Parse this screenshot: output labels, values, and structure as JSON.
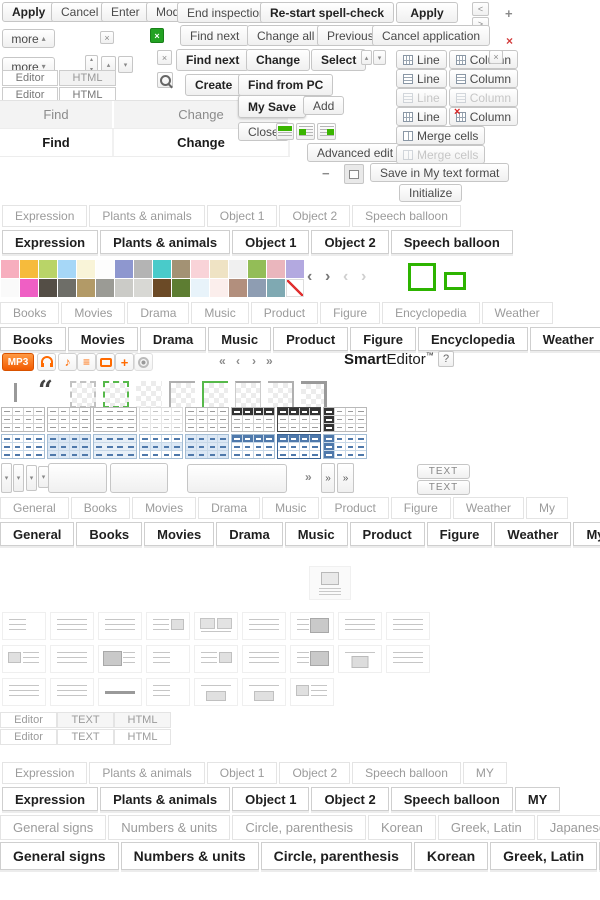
{
  "colors": {
    "accent_green": "#2db400",
    "accent_orange": "#ff6a00",
    "table_blue": "#4f79ab",
    "tab_inactive_text": "#9b9b9b",
    "tab_active_text": "#1f1f1f"
  },
  "top": {
    "apply": "Apply",
    "cancel": "Cancel",
    "enter": "Enter",
    "modify": "Modify",
    "end_inspection": "End inspection",
    "restart_spell_check": "Re-start spell-check",
    "apply_bold": "Apply",
    "find_next": "Find next",
    "change_all": "Change all",
    "previous": "Previous",
    "cancel_application": "Cancel application",
    "find_next2": "Find next",
    "change": "Change",
    "select": "Select",
    "more": "more",
    "editor": "Editor",
    "html": "HTML",
    "find": "Find",
    "change_header": "Change",
    "create": "Create",
    "find_from_pc": "Find from PC",
    "my_save": "My Save",
    "add": "Add",
    "close": "Close",
    "advanced_edit": "Advanced edit",
    "save_in_my_text_format": "Save in My text format",
    "initialize": "Initialize"
  },
  "table_controls": {
    "line": "Line",
    "column": "Column",
    "merge_cells": "Merge cells"
  },
  "tabs": {
    "stickers": [
      "Expression",
      "Plants & animals",
      "Object 1",
      "Object 2",
      "Speech balloon"
    ],
    "media": [
      "Books",
      "Movies",
      "Drama",
      "Music",
      "Product",
      "Figure",
      "Encyclopedia",
      "Weather"
    ],
    "photo": [
      "General",
      "Books",
      "Movies",
      "Drama",
      "Music",
      "Product",
      "Figure",
      "Weather",
      "My"
    ],
    "mode": [
      "Editor",
      "TEXT",
      "HTML"
    ],
    "stickers_my": [
      "Expression",
      "Plants & animals",
      "Object 1",
      "Object 2",
      "Speech balloon",
      "MY"
    ],
    "symbols": [
      "General signs",
      "Numbers & units",
      "Circle, parenthesis",
      "Korean",
      "Greek, Latin",
      "Japanese"
    ]
  },
  "brand": {
    "bold": "Smart",
    "regular": "Editor",
    "tm": "™",
    "help": "?"
  },
  "media_bar": {
    "mp3": "MP3",
    "icons": [
      "mp3-badge",
      "headphones-icon",
      "music-note-icon",
      "playlist-icon",
      "tv-icon",
      "plus-icon",
      "cd-icon"
    ]
  },
  "text_button_label": "TEXT",
  "glyphs": {
    "nav_left": "<",
    "nav_right": ">",
    "chevron_left": "‹",
    "chevron_right": "›",
    "double_left": "«",
    "double_right": "»",
    "up": "▲",
    "down": "▼",
    "tiny_up": "▴",
    "tiny_down": "▾",
    "close": "×",
    "plus": "+",
    "minus": "−",
    "quote": "“",
    "music_note": "♪",
    "playlist": "≡",
    "help": "?",
    "tm": "™"
  },
  "palette": {
    "row1": [
      "#f7aebe",
      "#f6bb3c",
      "#b9d468",
      "#a6d7f7",
      "#f9f4d8",
      "#fdfdfd",
      "#8e97cf",
      "#b4b4b4",
      "#49cbca",
      "#a39274",
      "#f9d3d8",
      "#efe3c4",
      "#f0f0f0",
      "#93bd57",
      "#eab6bd",
      "#b3a9e0"
    ],
    "row2": [
      "#fafafa",
      "#ef5fc4",
      "#544e46",
      "#6e6e68",
      "#b29a67",
      "#9b9b95",
      "#cbcbc7",
      "#d8d8d4",
      "#6b4a26",
      "#5d7d32",
      "#e8f3fa",
      "#fbeeec",
      "#b28f7d",
      "#8e9db2",
      "#7fa9b2",
      "#ffffff"
    ]
  },
  "table_styles": {
    "border_boxes": [
      "dashed-gray",
      "dashed-green",
      "plain",
      "corner-tl",
      "corner-tl-green",
      "box-lt",
      "corner-tr",
      "corner-tr-thick"
    ],
    "gray": [
      "plain",
      "plain",
      "rows",
      "light",
      "plain",
      "dark-header",
      "dark-header-alt",
      "dark-col"
    ],
    "blue": [
      "blue-lines",
      "blue-fill",
      "blue-rows",
      "blue-alt",
      "blue-fill",
      "blue-header",
      "blue-header-alt",
      "blue-col"
    ]
  },
  "layout_thumbs": {
    "row1": [
      "sm",
      "full",
      "full",
      "boxr-sm",
      "pair",
      "full",
      "boxr-lg",
      "full",
      "full"
    ],
    "row2": [
      "boxl",
      "full",
      "boxl-lg",
      "sm",
      "boxr-sm",
      "full",
      "boxr-lg",
      "boxc",
      "full"
    ],
    "row3": [
      "full",
      "full",
      "thick",
      "sm",
      "boxb",
      "boxb",
      "boxl"
    ]
  }
}
